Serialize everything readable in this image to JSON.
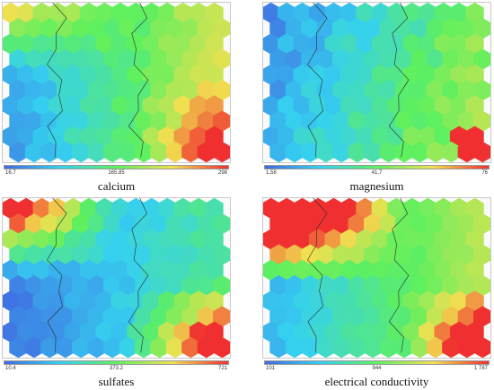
{
  "chart_data": [
    {
      "type": "heatmap",
      "title": "calcium",
      "scale": {
        "min_label": "16.7",
        "mid_label": "165.85",
        "max_label": "298"
      },
      "grid": {
        "cols": 14,
        "rows": 10
      },
      "colormap": [
        "#4169e1",
        "#35d0f0",
        "#5ef05e",
        "#f0e050",
        "#f03030"
      ]
    },
    {
      "type": "heatmap",
      "title": "magnesium",
      "scale": {
        "min_label": "1.58",
        "mid_label": "41.7",
        "max_label": "76"
      },
      "grid": {
        "cols": 14,
        "rows": 10
      },
      "colormap": [
        "#4169e1",
        "#35d0f0",
        "#5ef05e",
        "#f0e050",
        "#f03030"
      ]
    },
    {
      "type": "heatmap",
      "title": "sulfates",
      "scale": {
        "min_label": "10.4",
        "mid_label": "373.2",
        "max_label": "721"
      },
      "grid": {
        "cols": 14,
        "rows": 10
      },
      "colormap": [
        "#4169e1",
        "#35d0f0",
        "#5ef05e",
        "#f0e050",
        "#f03030"
      ]
    },
    {
      "type": "heatmap",
      "title": "electrical conductivity",
      "scale": {
        "min_label": "101",
        "mid_label": "944",
        "max_label": "1 787"
      },
      "grid": {
        "cols": 14,
        "rows": 10
      },
      "colormap": [
        "#4169e1",
        "#35d0f0",
        "#5ef05e",
        "#f0e050",
        "#f03030"
      ]
    }
  ]
}
